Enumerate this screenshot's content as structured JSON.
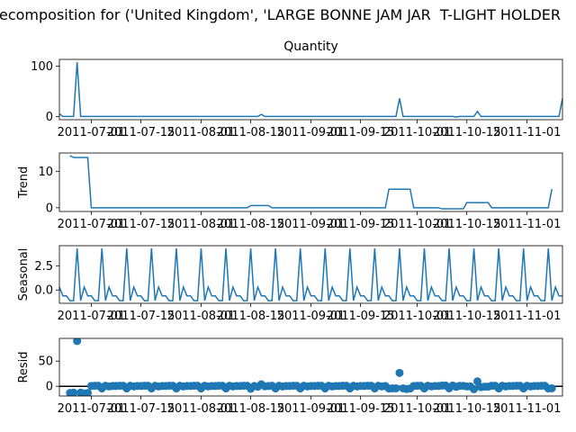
{
  "chart_data": {
    "type": "line",
    "title": "ecomposition for ('United Kingdom', 'LARGE BONNE JAM JAR  T-LIGHT HOLDER",
    "x": [
      "2011-06-22",
      "2011-06-23",
      "2011-06-24",
      "2011-06-25",
      "2011-06-26",
      "2011-06-27",
      "2011-06-28",
      "2011-06-29",
      "2011-06-30",
      "2011-07-01",
      "2011-07-02",
      "2011-07-03",
      "2011-07-04",
      "2011-07-05",
      "2011-07-06",
      "2011-07-07",
      "2011-07-08",
      "2011-07-09",
      "2011-07-10",
      "2011-07-11",
      "2011-07-12",
      "2011-07-13",
      "2011-07-14",
      "2011-07-15",
      "2011-07-16",
      "2011-07-17",
      "2011-07-18",
      "2011-07-19",
      "2011-07-20",
      "2011-07-21",
      "2011-07-22",
      "2011-07-23",
      "2011-07-24",
      "2011-07-25",
      "2011-07-26",
      "2011-07-27",
      "2011-07-28",
      "2011-07-29",
      "2011-07-30",
      "2011-07-31",
      "2011-08-01",
      "2011-08-02",
      "2011-08-03",
      "2011-08-04",
      "2011-08-05",
      "2011-08-06",
      "2011-08-07",
      "2011-08-08",
      "2011-08-09",
      "2011-08-10",
      "2011-08-11",
      "2011-08-12",
      "2011-08-13",
      "2011-08-14",
      "2011-08-15",
      "2011-08-16",
      "2011-08-17",
      "2011-08-18",
      "2011-08-19",
      "2011-08-20",
      "2011-08-21",
      "2011-08-22",
      "2011-08-23",
      "2011-08-24",
      "2011-08-25",
      "2011-08-26",
      "2011-08-27",
      "2011-08-28",
      "2011-08-29",
      "2011-08-30",
      "2011-08-31",
      "2011-09-01",
      "2011-09-02",
      "2011-09-03",
      "2011-09-04",
      "2011-09-05",
      "2011-09-06",
      "2011-09-07",
      "2011-09-08",
      "2011-09-09",
      "2011-09-10",
      "2011-09-11",
      "2011-09-12",
      "2011-09-13",
      "2011-09-14",
      "2011-09-15",
      "2011-09-16",
      "2011-09-17",
      "2011-09-18",
      "2011-09-19",
      "2011-09-20",
      "2011-09-21",
      "2011-09-22",
      "2011-09-23",
      "2011-09-24",
      "2011-09-25",
      "2011-09-26",
      "2011-09-27",
      "2011-09-28",
      "2011-09-29",
      "2011-09-30",
      "2011-10-01",
      "2011-10-02",
      "2011-10-03",
      "2011-10-04",
      "2011-10-05",
      "2011-10-06",
      "2011-10-07",
      "2011-10-08",
      "2011-10-09",
      "2011-10-10",
      "2011-10-11",
      "2011-10-12",
      "2011-10-13",
      "2011-10-14",
      "2011-10-15",
      "2011-10-16",
      "2011-10-17",
      "2011-10-18",
      "2011-10-19",
      "2011-10-20",
      "2011-10-21",
      "2011-10-22",
      "2011-10-23",
      "2011-10-24",
      "2011-10-25",
      "2011-10-26",
      "2011-10-27",
      "2011-10-28",
      "2011-10-29",
      "2011-10-30",
      "2011-10-31",
      "2011-11-01",
      "2011-11-02",
      "2011-11-03",
      "2011-11-04",
      "2011-11-05",
      "2011-11-06",
      "2011-11-07",
      "2011-11-08",
      "2011-11-09",
      "2011-11-10",
      "2011-11-11"
    ],
    "xlim": [
      "2011-06-22",
      "2011-11-11"
    ],
    "xticks": [
      "2011-07-01",
      "2011-07-15",
      "2011-08-01",
      "2011-08-15",
      "2011-09-01",
      "2011-09-15",
      "2011-10-01",
      "2011-10-15",
      "2011-11-01"
    ],
    "panels": [
      {
        "type": "line",
        "title": "Quantity",
        "color": "#1f77b4",
        "ylim": [
          -6.45,
          113.45
        ],
        "yticks": [
          0,
          100
        ],
        "values": [
          5,
          0,
          0,
          0,
          0,
          108,
          0,
          0,
          0,
          0,
          0,
          0,
          0,
          0,
          0,
          0,
          0,
          0,
          0,
          0,
          0,
          0,
          0,
          0,
          0,
          0,
          0,
          0,
          0,
          0,
          0,
          0,
          0,
          0,
          0,
          0,
          0,
          0,
          0,
          0,
          0,
          0,
          0,
          0,
          0,
          0,
          0,
          0,
          0,
          0,
          0,
          0,
          0,
          0,
          0,
          0,
          0,
          4,
          0,
          0,
          0,
          0,
          0,
          0,
          0,
          0,
          0,
          0,
          0,
          0,
          0,
          0,
          0,
          0,
          0,
          0,
          0,
          0,
          0,
          0,
          0,
          0,
          0,
          0,
          0,
          0,
          0,
          0,
          0,
          0,
          0,
          0,
          0,
          0,
          0,
          0,
          36,
          0,
          0,
          0,
          0,
          0,
          0,
          0,
          0,
          0,
          0,
          0,
          0,
          0,
          0,
          0,
          -1,
          0,
          0,
          0,
          0,
          0,
          10,
          0,
          0,
          0,
          0,
          0,
          0,
          0,
          0,
          0,
          0,
          0,
          0,
          0,
          0,
          0,
          0,
          0,
          0,
          0,
          0,
          0,
          0,
          0,
          36
        ]
      },
      {
        "type": "line",
        "ylabel": "Trend",
        "color": "#1f77b4",
        "ylim": [
          -1.03,
          15.03
        ],
        "yticks": [
          0,
          10
        ],
        "values": [
          null,
          null,
          null,
          14.3,
          13.8,
          13.8,
          13.8,
          13.8,
          13.8,
          0,
          0,
          0,
          0,
          0,
          0,
          0,
          0,
          0,
          0,
          0,
          0,
          0,
          0,
          0,
          0,
          0,
          0,
          0,
          0,
          0,
          0,
          0,
          0,
          0,
          0,
          0,
          0,
          0,
          0,
          0,
          0,
          0,
          0,
          0,
          0,
          0,
          0,
          0,
          0,
          0,
          0,
          0,
          0,
          0,
          0.6,
          0.6,
          0.6,
          0.6,
          0.6,
          0.6,
          0,
          0,
          0,
          0,
          0,
          0,
          0,
          0,
          0,
          0,
          0,
          0,
          0,
          0,
          0,
          0,
          0,
          0,
          0,
          0,
          0,
          0,
          0,
          0,
          0,
          0,
          0,
          0,
          0,
          0,
          0,
          0,
          0,
          5.1,
          5.1,
          5.1,
          5.1,
          5.1,
          5.1,
          5.1,
          0,
          0,
          0,
          0,
          0,
          0,
          0,
          0,
          -0.3,
          -0.3,
          -0.3,
          -0.3,
          -0.3,
          -0.3,
          -0.3,
          1.4,
          1.4,
          1.4,
          1.4,
          1.4,
          1.4,
          1.4,
          0,
          0,
          0,
          0,
          0,
          0,
          0,
          0,
          0,
          0,
          0,
          0,
          0,
          0,
          0,
          0,
          0,
          5.1,
          null,
          null,
          null
        ]
      },
      {
        "type": "line",
        "ylabel": "Seasonal",
        "color": "#1f77b4",
        "ylim": [
          -1.37,
          4.57
        ],
        "yticks": [
          {
            "value": 0,
            "label": "0.0"
          },
          {
            "value": 2.5,
            "label": "2.5"
          }
        ],
        "values": [
          0.3,
          -0.6,
          -0.6,
          -1.1,
          -1.1,
          4.3,
          -1.1,
          0.3,
          -0.6,
          -0.6,
          -1.1,
          -1.1,
          4.3,
          -1.1,
          0.3,
          -0.6,
          -0.6,
          -1.1,
          -1.1,
          4.3,
          -1.1,
          0.3,
          -0.6,
          -0.6,
          -1.1,
          -1.1,
          4.3,
          -1.1,
          0.3,
          -0.6,
          -0.6,
          -1.1,
          -1.1,
          4.3,
          -1.1,
          0.3,
          -0.6,
          -0.6,
          -1.1,
          -1.1,
          4.3,
          -1.1,
          0.3,
          -0.6,
          -0.6,
          -1.1,
          -1.1,
          4.3,
          -1.1,
          0.3,
          -0.6,
          -0.6,
          -1.1,
          -1.1,
          4.3,
          -1.1,
          0.3,
          -0.6,
          -0.6,
          -1.1,
          -1.1,
          4.3,
          -1.1,
          0.3,
          -0.6,
          -0.6,
          -1.1,
          -1.1,
          4.3,
          -1.1,
          0.3,
          -0.6,
          -0.6,
          -1.1,
          -1.1,
          4.3,
          -1.1,
          0.3,
          -0.6,
          -0.6,
          -1.1,
          -1.1,
          4.3,
          -1.1,
          0.3,
          -0.6,
          -0.6,
          -1.1,
          -1.1,
          4.3,
          -1.1,
          0.3,
          -0.6,
          -0.6,
          -1.1,
          -1.1,
          4.3,
          -1.1,
          0.3,
          -0.6,
          -0.6,
          -1.1,
          -1.1,
          4.3,
          -1.1,
          0.3,
          -0.6,
          -0.6,
          -1.1,
          -1.1,
          4.3,
          -1.1,
          0.3,
          -0.6,
          -0.6,
          -1.1,
          -1.1,
          4.3,
          -1.1,
          0.3,
          -0.6,
          -0.6,
          -1.1,
          -1.1,
          4.3,
          -1.1,
          0.3,
          -0.6,
          -0.6,
          -1.1,
          -1.1,
          4.3,
          -1.1,
          0.3,
          -0.6,
          -0.6,
          -1.1,
          -1.1,
          4.3,
          -1.1,
          0.3,
          -0.6,
          -0.6
        ]
      },
      {
        "type": "scatter",
        "ylabel": "Resid",
        "color": "#1f77b4",
        "ylim": [
          -19.3,
          95.1
        ],
        "yticks": [
          0,
          50
        ],
        "values": [
          null,
          null,
          null,
          -13.2,
          -12.7,
          89.9,
          -12.7,
          -14.1,
          -13.2,
          0.6,
          1.1,
          1.1,
          -4.3,
          1.1,
          -0.3,
          0.6,
          0.6,
          1.1,
          1.1,
          -4.3,
          1.1,
          -0.3,
          0.6,
          0.6,
          1.1,
          1.1,
          -4.3,
          1.1,
          -0.3,
          0.6,
          0.6,
          1.1,
          1.1,
          -4.3,
          1.1,
          -0.3,
          0.6,
          0.6,
          1.1,
          1.1,
          -4.3,
          1.1,
          -0.3,
          0.6,
          0.6,
          1.1,
          1.1,
          -4.3,
          1.1,
          -0.3,
          0.6,
          0.6,
          1.1,
          1.1,
          -4.9,
          0.5,
          -0.9,
          4.0,
          0,
          0.5,
          1.1,
          -4.3,
          1.1,
          -0.3,
          0.6,
          0.6,
          1.1,
          1.1,
          -4.3,
          1.1,
          -0.3,
          0.6,
          0.6,
          1.1,
          1.1,
          -4.3,
          1.1,
          -0.3,
          0.6,
          0.6,
          1.1,
          1.1,
          -4.3,
          1.1,
          -0.3,
          0.6,
          0.6,
          1.1,
          1.1,
          -4.3,
          1.1,
          -0.3,
          0.6,
          -4.5,
          -4.0,
          -4.0,
          26.6,
          -4.0,
          -5.4,
          -4.5,
          0.6,
          1.1,
          1.1,
          -4.3,
          1.1,
          -0.3,
          0.6,
          0.6,
          1.4,
          1.4,
          -4.0,
          1.4,
          -1.0,
          0.9,
          0.9,
          -0.3,
          -0.3,
          -5.7,
          9.7,
          -1.7,
          -0.8,
          -0.8,
          1.1,
          1.1,
          -4.3,
          1.1,
          -0.3,
          0.6,
          0.6,
          1.1,
          1.1,
          -4.3,
          1.1,
          -0.3,
          0.6,
          0.6,
          1.1,
          1.1,
          -4.3,
          -4.0,
          null,
          null,
          null
        ]
      }
    ]
  }
}
